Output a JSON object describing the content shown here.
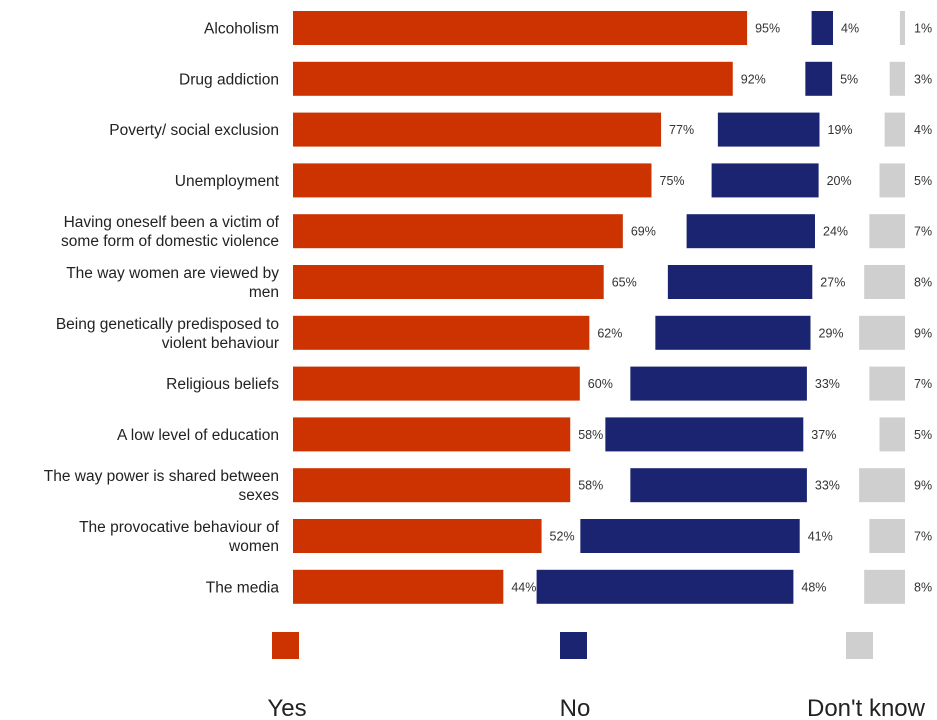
{
  "chart_data": {
    "type": "bar",
    "orientation": "horizontal",
    "categories": [
      "Alcoholism",
      "Drug addiction",
      "Poverty/ social exclusion",
      "Unemployment",
      "Having oneself been a victim of some form of domestic violence",
      "The way women are viewed by men",
      "Being genetically predisposed to violent behaviour",
      "Religious beliefs",
      "A low level of education",
      "The way power is shared between sexes",
      "The provocative behaviour of women",
      "The media"
    ],
    "category_lines": [
      [
        "Alcoholism"
      ],
      [
        "Drug addiction"
      ],
      [
        "Poverty/ social exclusion"
      ],
      [
        "Unemployment"
      ],
      [
        "Having oneself been a victim of",
        "some form of domestic violence"
      ],
      [
        "The way women are viewed by",
        "men"
      ],
      [
        "Being genetically predisposed to",
        "violent behaviour"
      ],
      [
        "Religious beliefs"
      ],
      [
        "A low level of education"
      ],
      [
        "The way power is shared between",
        "sexes"
      ],
      [
        "The provocative behaviour of",
        "women"
      ],
      [
        "The media"
      ]
    ],
    "series": [
      {
        "name": "Yes",
        "color": "#cc3300",
        "values": [
          95,
          92,
          77,
          75,
          69,
          65,
          62,
          60,
          58,
          58,
          52,
          44
        ]
      },
      {
        "name": "No",
        "color": "#1a2470",
        "values": [
          4,
          5,
          19,
          20,
          24,
          27,
          29,
          33,
          37,
          33,
          41,
          48
        ]
      },
      {
        "name": "Don't know",
        "color": "#cfcfcf",
        "values": [
          1,
          3,
          4,
          5,
          7,
          8,
          9,
          7,
          5,
          9,
          7,
          8
        ]
      }
    ],
    "value_suffix": "%",
    "title": "",
    "xlabel": "",
    "ylabel": "",
    "grid": false,
    "legend_position": "bottom"
  }
}
